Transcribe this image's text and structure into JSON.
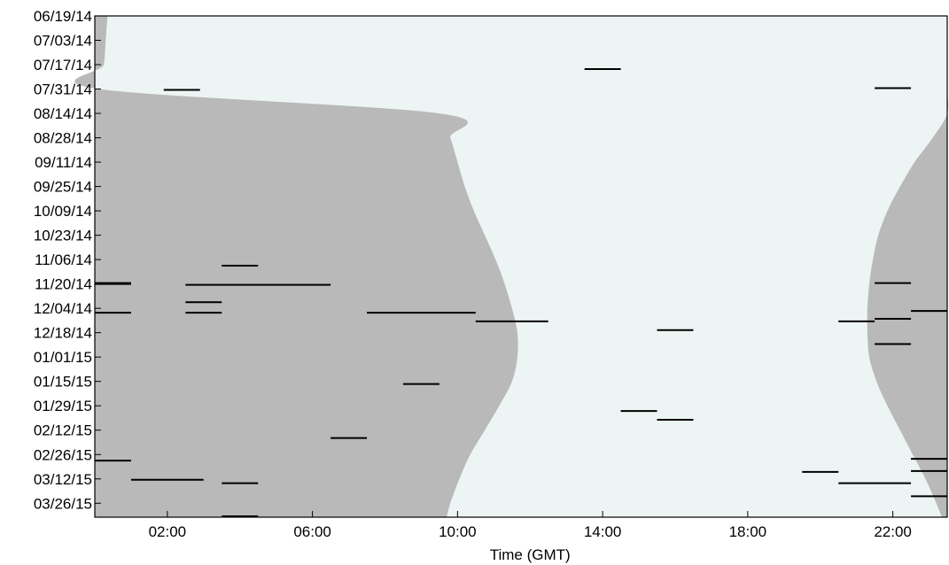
{
  "chart_data": {
    "type": "timeline",
    "title": "",
    "xlabel": "Time (GMT)",
    "ylabel": "",
    "x_unit": "hours GMT",
    "xlim": [
      0,
      23.5
    ],
    "x_ticks": [
      {
        "value": 2,
        "label": "02:00"
      },
      {
        "value": 6,
        "label": "06:00"
      },
      {
        "value": 10,
        "label": "10:00"
      },
      {
        "value": 14,
        "label": "14:00"
      },
      {
        "value": 18,
        "label": "18:00"
      },
      {
        "value": 22,
        "label": "22:00"
      }
    ],
    "y_ticks": [
      {
        "day": 0,
        "label": "06/19/14"
      },
      {
        "day": 14,
        "label": "07/03/14"
      },
      {
        "day": 28,
        "label": "07/17/14"
      },
      {
        "day": 42,
        "label": "07/31/14"
      },
      {
        "day": 56,
        "label": "08/14/14"
      },
      {
        "day": 70,
        "label": "08/28/14"
      },
      {
        "day": 84,
        "label": "09/11/14"
      },
      {
        "day": 98,
        "label": "09/25/14"
      },
      {
        "day": 112,
        "label": "10/09/14"
      },
      {
        "day": 126,
        "label": "10/23/14"
      },
      {
        "day": 140,
        "label": "11/06/14"
      },
      {
        "day": 154,
        "label": "11/20/14"
      },
      {
        "day": 168,
        "label": "12/04/14"
      },
      {
        "day": 182,
        "label": "12/18/14"
      },
      {
        "day": 196,
        "label": "01/01/15"
      },
      {
        "day": 210,
        "label": "01/15/15"
      },
      {
        "day": 224,
        "label": "01/29/15"
      },
      {
        "day": 238,
        "label": "02/12/15"
      },
      {
        "day": 252,
        "label": "02/26/15"
      },
      {
        "day": 266,
        "label": "03/12/15"
      },
      {
        "day": 280,
        "label": "03/26/15"
      }
    ],
    "ylim_days": [
      0,
      288
    ],
    "y_reversed": true,
    "background": {
      "night_color": "#b9b9b9",
      "day_color": "#edf4f4",
      "daylight_boundary": [
        {
          "day": 0,
          "sunrise": 0.35,
          "sunset": 23.5
        },
        {
          "day": 14,
          "sunrise": 0.3,
          "sunset": 23.5
        },
        {
          "day": 28,
          "sunrise": 0.25,
          "sunset": 23.5
        },
        {
          "day": 42,
          "sunrise": 0.1,
          "sunset": 23.5
        },
        {
          "day": 56,
          "sunrise": 9.5,
          "sunset": 23.5
        },
        {
          "day": 70,
          "sunrise": 9.8,
          "sunset": 23.1
        },
        {
          "day": 84,
          "sunrise": 10.0,
          "sunset": 22.6
        },
        {
          "day": 98,
          "sunrise": 10.2,
          "sunset": 22.2
        },
        {
          "day": 112,
          "sunrise": 10.45,
          "sunset": 21.85
        },
        {
          "day": 126,
          "sunrise": 10.75,
          "sunset": 21.6
        },
        {
          "day": 140,
          "sunrise": 11.05,
          "sunset": 21.45
        },
        {
          "day": 154,
          "sunrise": 11.3,
          "sunset": 21.35
        },
        {
          "day": 168,
          "sunrise": 11.5,
          "sunset": 21.3
        },
        {
          "day": 182,
          "sunrise": 11.65,
          "sunset": 21.3
        },
        {
          "day": 196,
          "sunrise": 11.65,
          "sunset": 21.35
        },
        {
          "day": 210,
          "sunrise": 11.5,
          "sunset": 21.55
        },
        {
          "day": 224,
          "sunrise": 11.15,
          "sunset": 21.85
        },
        {
          "day": 238,
          "sunrise": 10.75,
          "sunset": 22.2
        },
        {
          "day": 252,
          "sunrise": 10.35,
          "sunset": 22.55
        },
        {
          "day": 266,
          "sunrise": 10.05,
          "sunset": 22.9
        },
        {
          "day": 280,
          "sunrise": 9.8,
          "sunset": 23.2
        },
        {
          "day": 288,
          "sunrise": 9.7,
          "sunset": 23.35
        }
      ]
    },
    "series": [
      {
        "color": "#000000",
        "segments": [
          {
            "day": 30.5,
            "start": 13.5,
            "end": 14.5
          },
          {
            "day": 42.5,
            "start": 1.9,
            "end": 2.9
          },
          {
            "day": 41.5,
            "start": 21.5,
            "end": 22.5
          },
          {
            "day": 143.5,
            "start": 3.5,
            "end": 4.5
          },
          {
            "day": 153.5,
            "start": 0.0,
            "end": 1.0
          },
          {
            "day": 153.5,
            "start": 21.5,
            "end": 22.5
          },
          {
            "day": 154.5,
            "start": 2.5,
            "end": 6.5
          },
          {
            "day": 154.0,
            "start": 0.0,
            "end": 1.0
          },
          {
            "day": 164.5,
            "start": 2.5,
            "end": 3.5
          },
          {
            "day": 170.5,
            "start": 0.0,
            "end": 1.0
          },
          {
            "day": 170.5,
            "start": 2.5,
            "end": 3.5
          },
          {
            "day": 170.5,
            "start": 7.5,
            "end": 10.5
          },
          {
            "day": 169.5,
            "start": 22.5,
            "end": 23.5
          },
          {
            "day": 175.5,
            "start": 10.5,
            "end": 12.5
          },
          {
            "day": 175.5,
            "start": 20.5,
            "end": 21.5
          },
          {
            "day": 174.0,
            "start": 21.5,
            "end": 22.5
          },
          {
            "day": 180.5,
            "start": 15.5,
            "end": 16.5
          },
          {
            "day": 188.5,
            "start": 21.5,
            "end": 22.5
          },
          {
            "day": 211.5,
            "start": 8.5,
            "end": 9.5
          },
          {
            "day": 227.0,
            "start": 14.5,
            "end": 15.5
          },
          {
            "day": 232.0,
            "start": 15.5,
            "end": 16.5
          },
          {
            "day": 242.5,
            "start": 6.5,
            "end": 7.5
          },
          {
            "day": 255.5,
            "start": 0.0,
            "end": 1.0
          },
          {
            "day": 254.5,
            "start": 22.5,
            "end": 23.5
          },
          {
            "day": 262.0,
            "start": 19.5,
            "end": 20.5
          },
          {
            "day": 261.5,
            "start": 22.5,
            "end": 23.5
          },
          {
            "day": 266.5,
            "start": 1.0,
            "end": 3.0
          },
          {
            "day": 268.5,
            "start": 3.5,
            "end": 4.5
          },
          {
            "day": 268.5,
            "start": 20.5,
            "end": 22.5
          },
          {
            "day": 276.0,
            "start": 22.5,
            "end": 23.5
          },
          {
            "day": 287.5,
            "start": 3.5,
            "end": 4.5
          }
        ]
      }
    ]
  }
}
